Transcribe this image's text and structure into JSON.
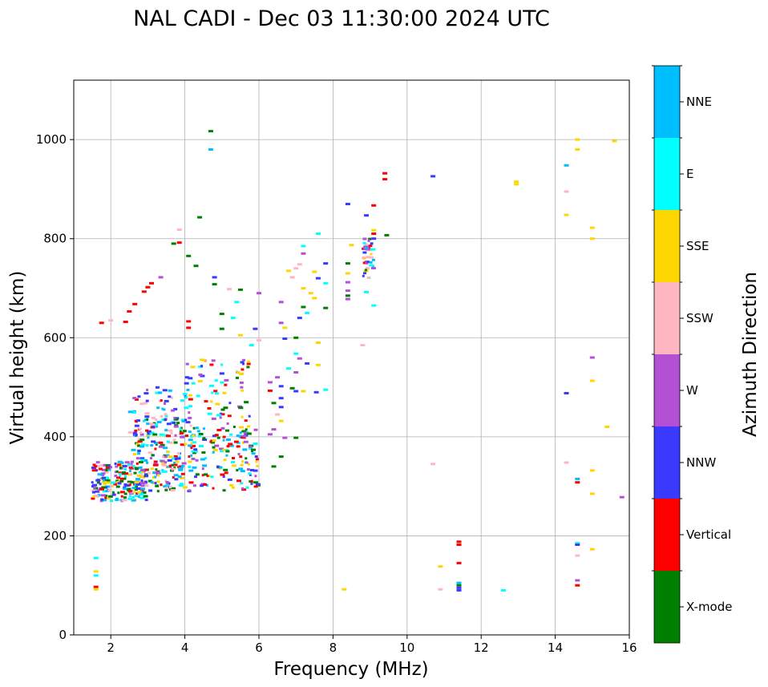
{
  "chart_data": {
    "type": "scatter",
    "title": "NAL CADI - Dec 03 11:30:00 2024 UTC",
    "xlabel": "Frequency (MHz)",
    "ylabel": "Virtual height (km)",
    "xlim": [
      1,
      16
    ],
    "ylim": [
      0,
      1120
    ],
    "xticks": [
      2,
      4,
      6,
      8,
      10,
      12,
      14,
      16
    ],
    "yticks": [
      0,
      200,
      400,
      600,
      800,
      1000
    ],
    "grid": true,
    "colorbar": {
      "label": "Azimuth Direction",
      "position": "right",
      "categories": [
        {
          "name": "X-mode",
          "color": "#008000"
        },
        {
          "name": "Vertical",
          "color": "#ff0000"
        },
        {
          "name": "NNW",
          "color": "#3a3aff"
        },
        {
          "name": "W",
          "color": "#b450d6"
        },
        {
          "name": "SSW",
          "color": "#ffb6c1"
        },
        {
          "name": "SSE",
          "color": "#ffd700"
        },
        {
          "name": "E",
          "color": "#00ffff"
        },
        {
          "name": "NNE",
          "color": "#00bfff"
        }
      ]
    },
    "points": [
      [
        4.7,
        1017,
        "X-mode"
      ],
      [
        4.7,
        980,
        "NNE"
      ],
      [
        4.4,
        843,
        "X-mode"
      ],
      [
        1.75,
        630,
        "Vertical"
      ],
      [
        2.0,
        635,
        "SSW"
      ],
      [
        2.4,
        632,
        "Vertical"
      ],
      [
        2.5,
        653,
        "Vertical"
      ],
      [
        2.65,
        668,
        "Vertical"
      ],
      [
        2.9,
        693,
        "Vertical"
      ],
      [
        3.0,
        702,
        "Vertical"
      ],
      [
        3.1,
        710,
        "Vertical"
      ],
      [
        3.35,
        722,
        "W"
      ],
      [
        3.7,
        790,
        "X-mode"
      ],
      [
        3.85,
        792,
        "Vertical"
      ],
      [
        3.85,
        818,
        "SSW"
      ],
      [
        4.1,
        765,
        "X-mode"
      ],
      [
        4.3,
        745,
        "X-mode"
      ],
      [
        4.1,
        633,
        "Vertical"
      ],
      [
        4.1,
        620,
        "Vertical"
      ],
      [
        4.8,
        722,
        "NNW"
      ],
      [
        4.8,
        708,
        "X-mode"
      ],
      [
        5.2,
        698,
        "SSW"
      ],
      [
        5.5,
        697,
        "X-mode"
      ],
      [
        5.4,
        672,
        "E"
      ],
      [
        5.0,
        648,
        "X-mode"
      ],
      [
        5.3,
        640,
        "E"
      ],
      [
        5.0,
        618,
        "X-mode"
      ],
      [
        5.5,
        605,
        "SSE"
      ],
      [
        5.9,
        618,
        "NNW"
      ],
      [
        6.0,
        690,
        "W"
      ],
      [
        6.0,
        595,
        "SSW"
      ],
      [
        5.8,
        585,
        "E"
      ],
      [
        6.6,
        630,
        "W"
      ],
      [
        6.7,
        620,
        "SSE"
      ],
      [
        6.8,
        735,
        "SSE"
      ],
      [
        6.9,
        722,
        "SSW"
      ],
      [
        7.0,
        740,
        "SSW"
      ],
      [
        7.1,
        748,
        "SSW"
      ],
      [
        7.2,
        770,
        "W"
      ],
      [
        7.2,
        785,
        "E"
      ],
      [
        7.6,
        810,
        "E"
      ],
      [
        7.8,
        750,
        "NNW"
      ],
      [
        7.5,
        733,
        "SSE"
      ],
      [
        7.6,
        720,
        "NNW"
      ],
      [
        7.8,
        710,
        "E"
      ],
      [
        7.2,
        700,
        "SSE"
      ],
      [
        7.4,
        690,
        "SSE"
      ],
      [
        6.6,
        672,
        "W"
      ],
      [
        7.5,
        680,
        "SSE"
      ],
      [
        7.2,
        662,
        "X-mode"
      ],
      [
        7.3,
        650,
        "E"
      ],
      [
        7.8,
        660,
        "X-mode"
      ],
      [
        7.1,
        640,
        "NNW"
      ],
      [
        7.0,
        600,
        "X-mode"
      ],
      [
        6.7,
        598,
        "NNW"
      ],
      [
        7.6,
        590,
        "SSE"
      ],
      [
        7.0,
        568,
        "E"
      ],
      [
        7.1,
        558,
        "W"
      ],
      [
        7.3,
        548,
        "NNW"
      ],
      [
        7.6,
        545,
        "SSE"
      ],
      [
        6.8,
        538,
        "E"
      ],
      [
        7.0,
        530,
        "W"
      ],
      [
        6.5,
        520,
        "W"
      ],
      [
        6.3,
        510,
        "W"
      ],
      [
        6.6,
        502,
        "NNW"
      ],
      [
        6.3,
        493,
        "Vertical"
      ],
      [
        6.9,
        498,
        "X-mode"
      ],
      [
        7.0,
        492,
        "NNW"
      ],
      [
        7.2,
        492,
        "SSE"
      ],
      [
        7.55,
        490,
        "NNW"
      ],
      [
        7.8,
        495,
        "E"
      ],
      [
        6.6,
        478,
        "NNW"
      ],
      [
        6.4,
        468,
        "X-mode"
      ],
      [
        6.6,
        460,
        "NNW"
      ],
      [
        6.5,
        445,
        "SSW"
      ],
      [
        6.6,
        432,
        "SSE"
      ],
      [
        6.4,
        415,
        "W"
      ],
      [
        6.3,
        405,
        "W"
      ],
      [
        6.7,
        398,
        "W"
      ],
      [
        7.0,
        398,
        "X-mode"
      ],
      [
        6.6,
        360,
        "X-mode"
      ],
      [
        6.4,
        340,
        "X-mode"
      ],
      [
        8.4,
        870,
        "NNW"
      ],
      [
        8.9,
        847,
        "NNW"
      ],
      [
        9.1,
        867,
        "Vertical"
      ],
      [
        8.5,
        787,
        "SSE"
      ],
      [
        8.4,
        750,
        "X-mode"
      ],
      [
        8.4,
        730,
        "SSE"
      ],
      [
        8.4,
        712,
        "W"
      ],
      [
        8.4,
        695,
        "W"
      ],
      [
        8.4,
        685,
        "X-mode"
      ],
      [
        8.4,
        678,
        "W"
      ],
      [
        8.9,
        692,
        "E"
      ],
      [
        9.1,
        665,
        "E"
      ],
      [
        8.8,
        585,
        "SSW"
      ],
      [
        9.4,
        932,
        "Vertical"
      ],
      [
        9.4,
        920,
        "Vertical"
      ],
      [
        9.1,
        817,
        "SSE"
      ],
      [
        9.1,
        810,
        "Vertical"
      ],
      [
        9.45,
        807,
        "X-mode"
      ],
      [
        9.1,
        800,
        "NNW"
      ],
      [
        10.7,
        926,
        "NNW"
      ],
      [
        12.95,
        915,
        "SSE"
      ],
      [
        12.95,
        910,
        "SSE"
      ],
      [
        14.6,
        1000,
        "SSE"
      ],
      [
        15.6,
        997,
        "SSE"
      ],
      [
        14.6,
        980,
        "SSE"
      ],
      [
        14.3,
        948,
        "NNE"
      ],
      [
        14.3,
        895,
        "SSW"
      ],
      [
        14.3,
        848,
        "SSE"
      ],
      [
        15.0,
        822,
        "SSE"
      ],
      [
        15.0,
        800,
        "SSE"
      ],
      [
        14.3,
        488,
        "NNW"
      ],
      [
        15.0,
        560,
        "W"
      ],
      [
        15.0,
        513,
        "SSE"
      ],
      [
        15.4,
        420,
        "SSE"
      ],
      [
        14.3,
        348,
        "SSW"
      ],
      [
        14.6,
        315,
        "NNE"
      ],
      [
        14.6,
        308,
        "Vertical"
      ],
      [
        15.0,
        332,
        "SSE"
      ],
      [
        15.0,
        285,
        "SSE"
      ],
      [
        15.8,
        278,
        "W"
      ],
      [
        14.6,
        185,
        "E"
      ],
      [
        14.6,
        182,
        "NNW"
      ],
      [
        14.6,
        160,
        "SSW"
      ],
      [
        15.0,
        173,
        "SSE"
      ],
      [
        14.6,
        110,
        "W"
      ],
      [
        14.6,
        100,
        "Vertical"
      ],
      [
        12.6,
        90,
        "E"
      ],
      [
        10.7,
        345,
        "SSW"
      ],
      [
        10.9,
        138,
        "SSE"
      ],
      [
        10.9,
        92,
        "SSW"
      ],
      [
        11.4,
        188,
        "Vertical"
      ],
      [
        11.4,
        182,
        "Vertical"
      ],
      [
        11.4,
        145,
        "Vertical"
      ],
      [
        11.4,
        105,
        "NNE"
      ],
      [
        11.4,
        100,
        "X-mode"
      ],
      [
        11.4,
        95,
        "NNW"
      ],
      [
        11.4,
        90,
        "NNW"
      ],
      [
        8.3,
        92,
        "SSE"
      ],
      [
        1.6,
        155,
        "E"
      ],
      [
        1.6,
        128,
        "SSE"
      ],
      [
        1.6,
        120,
        "E"
      ],
      [
        1.6,
        97,
        "Vertical"
      ],
      [
        1.6,
        92,
        "SSE"
      ]
    ],
    "dense_clusters": [
      {
        "f": [
          1.5,
          3.0
        ],
        "h": [
          270,
          350
        ],
        "n": 220,
        "azimuths": [
          "Vertical",
          "SSE",
          "SSW",
          "NNW",
          "E",
          "X-mode",
          "W",
          "NNE"
        ]
      },
      {
        "f": [
          2.6,
          4.0
        ],
        "h": [
          290,
          440
        ],
        "n": 200,
        "azimuths": [
          "Vertical",
          "NNW",
          "W",
          "SSE",
          "E",
          "X-mode",
          "SSW",
          "NNE"
        ]
      },
      {
        "f": [
          2.5,
          4.2
        ],
        "h": [
          400,
          500
        ],
        "n": 60,
        "azimuths": [
          "E",
          "NNE",
          "W",
          "SSW",
          "Vertical",
          "NNW"
        ]
      },
      {
        "f": [
          4.0,
          6.0
        ],
        "h": [
          290,
          420
        ],
        "n": 160,
        "azimuths": [
          "X-mode",
          "NNW",
          "E",
          "NNE",
          "W",
          "SSE",
          "Vertical"
        ]
      },
      {
        "f": [
          4.0,
          5.8
        ],
        "h": [
          420,
          560
        ],
        "n": 70,
        "azimuths": [
          "X-mode",
          "E",
          "Vertical",
          "SSE",
          "W",
          "NNW"
        ]
      },
      {
        "f": [
          8.8,
          9.1
        ],
        "h": [
          720,
          800
        ],
        "n": 40,
        "azimuths": [
          "Vertical",
          "X-mode",
          "SSE",
          "SSW",
          "W",
          "NNW",
          "E",
          "NNE"
        ]
      }
    ]
  }
}
